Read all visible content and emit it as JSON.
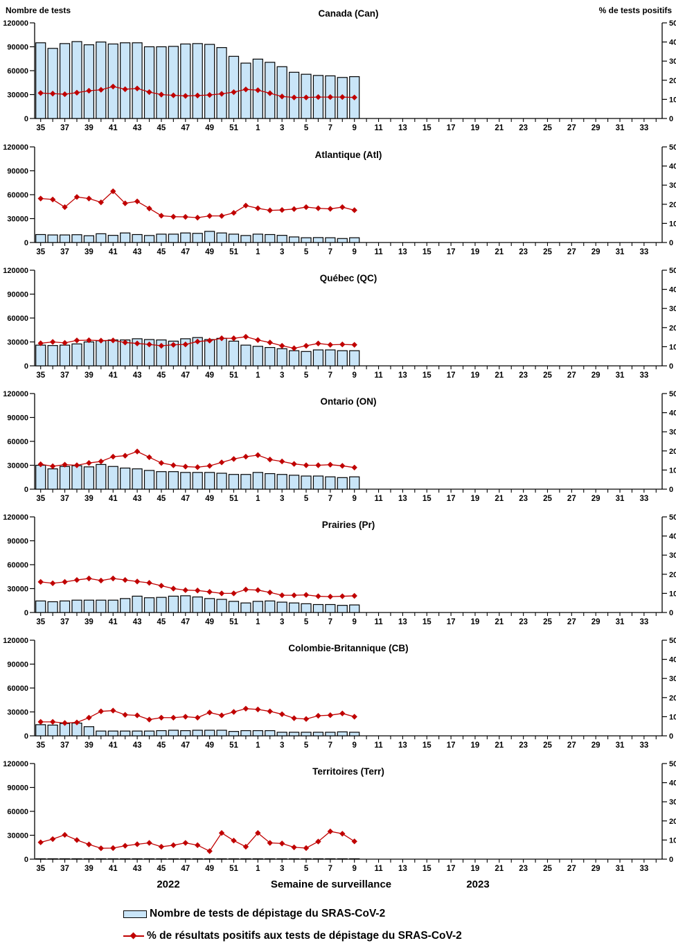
{
  "header": {
    "left_label": "Nombre de tests",
    "right_label": "% de tests positifs"
  },
  "footer": {
    "year_left": "2022",
    "axis_title": "Semaine de surveillance",
    "year_right": "2023"
  },
  "legend": [
    {
      "swatch": "bar",
      "label": "Nombre de tests de dépistage du SRAS-CoV-2"
    },
    {
      "swatch": "line",
      "label": "% de résultats positifs aux tests de dépistage du SRAS-CoV-2"
    }
  ],
  "colors": {
    "bar_fill": "#C9E5F8",
    "bar_border": "#000000",
    "line": "#C00000",
    "axis": "#000000",
    "text": "#000000",
    "background": "#FFFFFF"
  },
  "axes": {
    "left": {
      "label": "Nombre de tests",
      "ticks": [
        0,
        30000,
        60000,
        90000,
        120000
      ],
      "max": 120000
    },
    "right": {
      "label": "% de tests positifs",
      "ticks": [
        0,
        10,
        20,
        30,
        40,
        50
      ],
      "max": 50
    },
    "x": {
      "label": "Semaine de surveillance",
      "weeks": [
        35,
        36,
        37,
        38,
        39,
        40,
        41,
        42,
        43,
        44,
        45,
        46,
        47,
        48,
        49,
        50,
        51,
        52,
        1,
        2,
        3,
        4,
        5,
        6,
        7,
        8,
        9,
        10,
        11,
        12,
        13,
        14,
        15,
        16,
        17,
        18,
        19,
        20,
        21,
        22,
        23,
        24,
        25,
        26,
        27,
        28,
        29,
        30,
        31,
        32,
        33,
        34
      ],
      "labeled_weeks": [
        35,
        37,
        39,
        41,
        43,
        45,
        47,
        49,
        51,
        1,
        3,
        5,
        7,
        9,
        11,
        13,
        15,
        17,
        19,
        21,
        23,
        25,
        27,
        29,
        31,
        33
      ]
    }
  },
  "chart_data": [
    {
      "type": "bar",
      "title": "Canada (Can)",
      "categories": [
        35,
        36,
        37,
        38,
        39,
        40,
        41,
        42,
        43,
        44,
        45,
        46,
        47,
        48,
        49,
        50,
        51,
        52,
        1,
        2,
        3,
        4,
        5,
        6,
        7,
        8,
        9
      ],
      "ylim_left": [
        0,
        120000
      ],
      "ylim_right": [
        0,
        50
      ],
      "series": [
        {
          "name": "Nombre de tests de dépistage du SRAS-CoV-2",
          "type": "bar",
          "axis": "left",
          "values": [
            95000,
            88000,
            94000,
            96500,
            92500,
            96000,
            93500,
            95000,
            95000,
            90000,
            90000,
            90500,
            93500,
            94000,
            93000,
            89000,
            78000,
            69500,
            74500,
            70500,
            65000,
            58000,
            55500,
            54000,
            53500,
            51500,
            52500
          ]
        },
        {
          "name": "% de résultats positifs aux tests de dépistage du SRAS-CoV-2",
          "type": "line",
          "axis": "right",
          "values": [
            13.3,
            13.0,
            12.7,
            13.5,
            14.5,
            15.0,
            16.7,
            15.3,
            15.7,
            13.8,
            12.5,
            12.1,
            11.8,
            12.0,
            12.3,
            12.9,
            13.8,
            15.2,
            14.8,
            13.2,
            11.5,
            11.0,
            11.0,
            11.2,
            11.2,
            11.2,
            11.0
          ]
        }
      ]
    },
    {
      "type": "bar",
      "title": "Atlantique (Atl)",
      "categories": [
        35,
        36,
        37,
        38,
        39,
        40,
        41,
        42,
        43,
        44,
        45,
        46,
        47,
        48,
        49,
        50,
        51,
        52,
        1,
        2,
        3,
        4,
        5,
        6,
        7,
        8,
        9
      ],
      "ylim_left": [
        0,
        120000
      ],
      "ylim_right": [
        0,
        50
      ],
      "series": [
        {
          "name": "Nombre de tests de dépistage du SRAS-CoV-2",
          "type": "bar",
          "axis": "left",
          "values": [
            10000,
            9500,
            9500,
            9800,
            8500,
            11000,
            9000,
            12000,
            10000,
            8800,
            10500,
            10500,
            12000,
            11500,
            14000,
            12000,
            10500,
            8800,
            10500,
            10000,
            9000,
            7000,
            6000,
            6200,
            6000,
            5000,
            6000
          ]
        },
        {
          "name": "% de résultats positifs aux tests de dépistage du SRAS-CoV-2",
          "type": "line",
          "axis": "right",
          "values": [
            23.0,
            22.5,
            18.5,
            23.8,
            23.0,
            21.0,
            26.8,
            20.5,
            21.5,
            17.8,
            14.0,
            13.5,
            13.4,
            13.0,
            13.9,
            13.9,
            15.5,
            19.3,
            17.9,
            16.8,
            17.0,
            17.5,
            18.5,
            17.9,
            17.6,
            18.5,
            16.9
          ]
        }
      ]
    },
    {
      "type": "bar",
      "title": "Québec (QC)",
      "categories": [
        35,
        36,
        37,
        38,
        39,
        40,
        41,
        42,
        43,
        44,
        45,
        46,
        47,
        48,
        49,
        50,
        51,
        52,
        1,
        2,
        3,
        4,
        5,
        6,
        7,
        8,
        9
      ],
      "ylim_left": [
        0,
        120000
      ],
      "ylim_right": [
        0,
        50
      ],
      "series": [
        {
          "name": "Nombre de tests de dépistage du SRAS-CoV-2",
          "type": "bar",
          "axis": "left",
          "values": [
            26000,
            25500,
            26000,
            27500,
            30000,
            31500,
            32500,
            32500,
            34000,
            33000,
            32500,
            31000,
            34000,
            35500,
            33000,
            34500,
            31000,
            26000,
            24500,
            23000,
            21500,
            19000,
            18000,
            20000,
            20000,
            19000,
            19000
          ]
        },
        {
          "name": "% de résultats positifs aux tests de dépistage du SRAS-CoV-2",
          "type": "line",
          "axis": "right",
          "values": [
            11.8,
            12.5,
            12.0,
            13.3,
            13.4,
            13.2,
            13.3,
            12.2,
            11.7,
            11.2,
            10.5,
            11.0,
            11.2,
            12.7,
            13.2,
            14.4,
            14.4,
            15.2,
            13.5,
            12.2,
            10.5,
            9.2,
            10.5,
            11.7,
            11.0,
            11.2,
            11.0
          ]
        }
      ]
    },
    {
      "type": "bar",
      "title": "Ontario (ON)",
      "categories": [
        35,
        36,
        37,
        38,
        39,
        40,
        41,
        42,
        43,
        44,
        45,
        46,
        47,
        48,
        49,
        50,
        51,
        52,
        1,
        2,
        3,
        4,
        5,
        6,
        7,
        8,
        9
      ],
      "ylim_left": [
        0,
        120000
      ],
      "ylim_right": [
        0,
        50
      ],
      "series": [
        {
          "name": "Nombre de tests de dépistage du SRAS-CoV-2",
          "type": "bar",
          "axis": "left",
          "values": [
            30000,
            25500,
            28500,
            29500,
            28000,
            31000,
            28500,
            26500,
            25500,
            23500,
            22000,
            22000,
            21000,
            21000,
            21000,
            20000,
            18500,
            18500,
            21000,
            19500,
            18500,
            17500,
            16500,
            16500,
            15500,
            14500,
            15500
          ]
        },
        {
          "name": "% de résultats positifs aux tests de dépistage du SRAS-CoV-2",
          "type": "line",
          "axis": "right",
          "values": [
            13.0,
            12.0,
            12.8,
            12.5,
            13.7,
            14.5,
            17.0,
            17.5,
            19.7,
            16.7,
            13.7,
            12.5,
            11.8,
            11.5,
            12.2,
            14.0,
            15.8,
            17.0,
            17.8,
            15.5,
            14.5,
            13.2,
            12.5,
            12.5,
            12.8,
            12.2,
            11.3
          ]
        }
      ]
    },
    {
      "type": "bar",
      "title": "Prairies (Pr)",
      "categories": [
        35,
        36,
        37,
        38,
        39,
        40,
        41,
        42,
        43,
        44,
        45,
        46,
        47,
        48,
        49,
        50,
        51,
        52,
        1,
        2,
        3,
        4,
        5,
        6,
        7,
        8,
        9
      ],
      "ylim_left": [
        0,
        120000
      ],
      "ylim_right": [
        0,
        50
      ],
      "series": [
        {
          "name": "Nombre de tests de dépistage du SRAS-CoV-2",
          "type": "bar",
          "axis": "left",
          "values": [
            14500,
            13500,
            14500,
            15500,
            15500,
            15500,
            15500,
            17500,
            20500,
            18500,
            19000,
            20500,
            21000,
            19500,
            17500,
            16500,
            14000,
            12000,
            14000,
            14500,
            13000,
            12000,
            11000,
            10000,
            10000,
            9000,
            9500
          ]
        },
        {
          "name": "% de résultats positifs aux tests de dépistage du SRAS-CoV-2",
          "type": "line",
          "axis": "right",
          "values": [
            16.0,
            15.3,
            16.0,
            17.0,
            17.8,
            16.7,
            17.8,
            17.0,
            16.2,
            15.5,
            14.0,
            12.5,
            11.7,
            11.5,
            10.8,
            10.0,
            10.0,
            12.0,
            11.7,
            10.5,
            9.0,
            9.0,
            9.2,
            8.5,
            8.3,
            8.5,
            8.7
          ]
        }
      ]
    },
    {
      "type": "bar",
      "title": "Colombie-Britannique (CB)",
      "categories": [
        35,
        36,
        37,
        38,
        39,
        40,
        41,
        42,
        43,
        44,
        45,
        46,
        47,
        48,
        49,
        50,
        51,
        52,
        1,
        2,
        3,
        4,
        5,
        6,
        7,
        8,
        9
      ],
      "ylim_left": [
        0,
        120000
      ],
      "ylim_right": [
        0,
        50
      ],
      "series": [
        {
          "name": "Nombre de tests de dépistage du SRAS-CoV-2",
          "type": "bar",
          "axis": "left",
          "values": [
            14000,
            13500,
            15500,
            16000,
            11500,
            6000,
            6000,
            6000,
            6000,
            6000,
            6500,
            7000,
            6500,
            7000,
            7000,
            7000,
            5500,
            6500,
            6500,
            6500,
            4500,
            4500,
            4500,
            4500,
            4500,
            5000,
            4500
          ]
        },
        {
          "name": "% de résultats positifs aux tests de dépistage du SRAS-CoV-2",
          "type": "line",
          "axis": "right",
          "values": [
            7.3,
            7.3,
            6.7,
            7.0,
            9.5,
            12.8,
            13.2,
            11.0,
            10.7,
            8.5,
            9.5,
            9.5,
            10.0,
            9.5,
            12.2,
            10.7,
            12.5,
            14.2,
            13.8,
            12.8,
            11.3,
            9.2,
            8.8,
            10.5,
            10.8,
            11.7,
            10.0
          ]
        }
      ]
    },
    {
      "type": "bar",
      "title": "Territoires (Terr)",
      "categories": [
        35,
        36,
        37,
        38,
        39,
        40,
        41,
        42,
        43,
        44,
        45,
        46,
        47,
        48,
        49,
        50,
        51,
        52,
        1,
        2,
        3,
        4,
        5,
        6,
        7,
        8,
        9
      ],
      "ylim_left": [
        0,
        120000
      ],
      "ylim_right": [
        0,
        50
      ],
      "series": [
        {
          "name": "Nombre de tests de dépistage du SRAS-CoV-2",
          "type": "bar",
          "axis": "left",
          "values": [
            500,
            500,
            500,
            500,
            500,
            500,
            500,
            500,
            500,
            500,
            500,
            500,
            500,
            500,
            500,
            500,
            500,
            500,
            500,
            500,
            500,
            500,
            500,
            500,
            500,
            500,
            500
          ]
        },
        {
          "name": "% de résultats positifs aux tests de dépistage du SRAS-CoV-2",
          "type": "line",
          "axis": "right",
          "values": [
            8.8,
            10.5,
            12.7,
            10.0,
            7.7,
            5.7,
            5.8,
            7.0,
            7.8,
            8.5,
            6.5,
            7.3,
            8.5,
            7.3,
            4.2,
            13.7,
            9.7,
            6.5,
            13.7,
            8.5,
            8.2,
            6.2,
            5.8,
            9.2,
            14.5,
            13.3,
            9.3
          ]
        }
      ]
    }
  ]
}
